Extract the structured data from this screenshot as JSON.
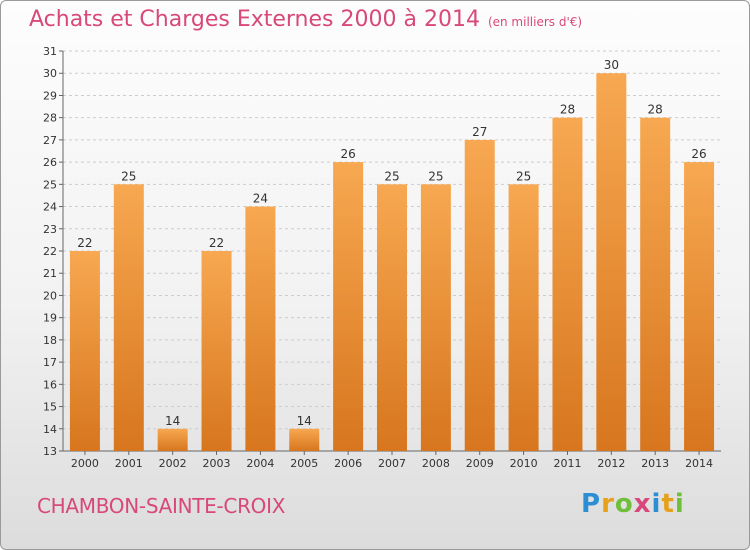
{
  "header": {
    "title": "Achats et Charges Externes 2000 à 2014",
    "subtitle": "(en milliers d'€)"
  },
  "footer": {
    "city": "CHAMBON-SAINTE-CROIX",
    "logo_text": "Proxiti",
    "logo_letters": [
      {
        "ch": "P",
        "color": "#2c8fd6"
      },
      {
        "ch": "r",
        "color": "#e6a11a"
      },
      {
        "ch": "o",
        "color": "#6fbf3a"
      },
      {
        "ch": "x",
        "color": "#d8487a"
      },
      {
        "ch": "i",
        "color": "#2c8fd6"
      },
      {
        "ch": "t",
        "color": "#e6a11a"
      },
      {
        "ch": "i",
        "color": "#6fbf3a"
      }
    ]
  },
  "colors": {
    "bar_light": "#f7a851",
    "bar_dark": "#d7761e",
    "title": "#d8487a",
    "grid": "#cccccc"
  },
  "chart_data": {
    "type": "bar",
    "title": "Achats et Charges Externes 2000 à 2014",
    "subtitle": "(en milliers d'€)",
    "xlabel": "",
    "ylabel": "",
    "categories": [
      "2000",
      "2001",
      "2002",
      "2003",
      "2004",
      "2005",
      "2006",
      "2007",
      "2008",
      "2009",
      "2010",
      "2011",
      "2012",
      "2013",
      "2014"
    ],
    "values": [
      22,
      25,
      14,
      22,
      24,
      14,
      26,
      25,
      25,
      27,
      25,
      28,
      30,
      28,
      26
    ],
    "ylim": [
      13,
      31
    ],
    "yticks": [
      13,
      14,
      15,
      16,
      17,
      18,
      19,
      20,
      21,
      22,
      23,
      24,
      25,
      26,
      27,
      28,
      29,
      30,
      31
    ],
    "grid": true,
    "legend": "none"
  }
}
